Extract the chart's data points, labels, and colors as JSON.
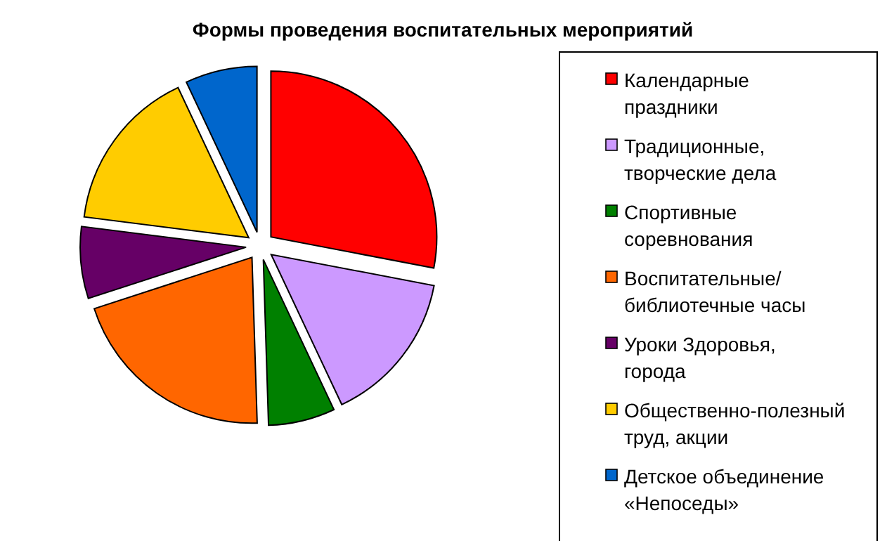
{
  "chart_data": {
    "type": "pie",
    "title": "Формы проведения воспитательных мероприятий",
    "categories": [
      "Календарные праздники",
      "Традиционные, творческие дела",
      "Спортивные соревнования",
      "Воспитательные/ библиотечные часы",
      "Уроки Здоровья, города",
      "Общественно-полезный труд, акции",
      "Детское объединение «Непоседы»"
    ],
    "values": [
      28,
      15,
      6.5,
      20.5,
      7,
      16,
      7
    ],
    "colors": [
      "#ff0000",
      "#cc99ff",
      "#008000",
      "#ff6600",
      "#660066",
      "#ffcc00",
      "#0066cc"
    ],
    "legend": "right"
  }
}
